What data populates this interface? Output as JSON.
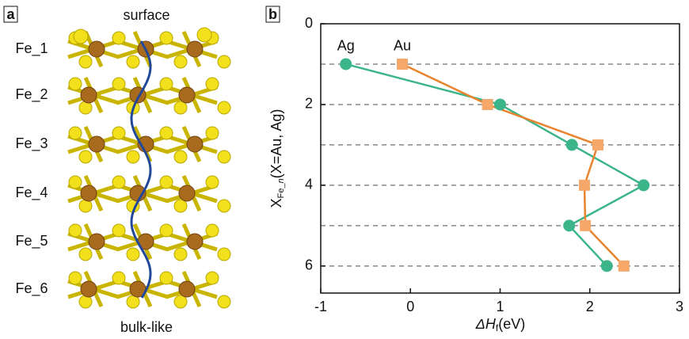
{
  "panel_a": {
    "label": "a",
    "top": "surface",
    "bottom": "bulk-like",
    "layers": [
      "Fe_1",
      "Fe_2",
      "Fe_3",
      "Fe_4",
      "Fe_5",
      "Fe_6"
    ]
  },
  "chart_data": {
    "type": "line",
    "panel_label": "b",
    "xlabel": {
      "symbol": "ΔH",
      "sub": "f",
      "unit": "(eV)"
    },
    "ylabel": {
      "symbol": "X",
      "sub": "Fe_",
      "sub_italic": "n",
      "rest": "(X=Au, Ag)"
    },
    "y": [
      1,
      2,
      3,
      4,
      5,
      6
    ],
    "series": [
      {
        "name": "Ag",
        "color": "#3db58a",
        "marker": "circle",
        "values": [
          -0.72,
          1.0,
          1.8,
          2.6,
          1.77,
          2.19
        ]
      },
      {
        "name": "Au",
        "color": "#e8832e",
        "marker_color": "#f5a869",
        "marker": "square",
        "values": [
          -0.09,
          0.86,
          2.09,
          1.94,
          1.95,
          2.38
        ]
      }
    ],
    "xlim": [
      -1,
      3
    ],
    "xticks": [
      -1,
      0,
      1,
      2,
      3
    ],
    "ylim": [
      0,
      6.67
    ],
    "yticks": [
      0,
      2,
      4,
      6
    ],
    "y_inverted": true,
    "hgrid": [
      1,
      2,
      3,
      4,
      5,
      6
    ]
  }
}
